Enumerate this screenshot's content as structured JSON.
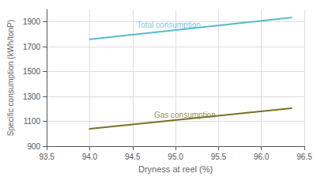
{
  "chart_data": {
    "type": "line",
    "xlabel": "Dryness at reel (%)",
    "ylabel": "Specific consumption (kWh/tonP)",
    "series": [
      {
        "color": "#5BB8D4",
        "x": [
          94.0,
          96.35
        ],
        "values": [
          1760,
          1935
        ]
      },
      {
        "color": "#7A7228",
        "x": [
          94.0,
          96.35
        ],
        "values": [
          1040,
          1205
        ]
      }
    ],
    "annotations": [
      {
        "text": "Total consumption",
        "x": 94.55,
        "y": 1845,
        "color": "#5BB8D4"
      },
      {
        "text": "Gas consumption",
        "x": 94.75,
        "y": 1120,
        "color": "#7A7228"
      }
    ],
    "xlim": [
      93.5,
      96.5
    ],
    "xticks": [
      93.5,
      {
        "value": 94.0,
        "label": "94.0"
      },
      94.5,
      {
        "value": 95.0,
        "label": "95.0"
      },
      95.5,
      {
        "value": 96.0,
        "label": "96.0"
      },
      96.5
    ],
    "ylim": [
      900,
      2000
    ],
    "yticks": [
      900,
      1100,
      1300,
      1500,
      1700,
      1900
    ],
    "grid": true
  }
}
